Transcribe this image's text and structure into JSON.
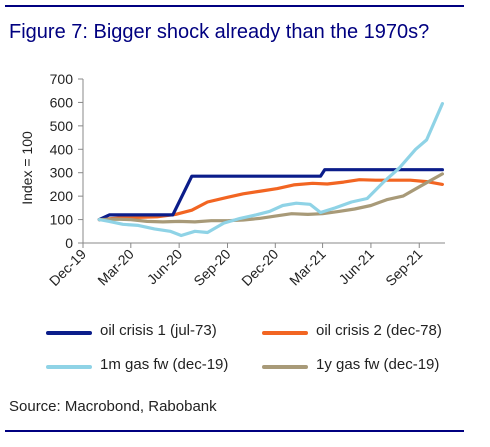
{
  "title": "Figure 7: Bigger shock already than the 1970s?",
  "source": "Source: Macrobond, Rabobank",
  "colors": {
    "brand": "#000080",
    "axis": "#888888"
  },
  "chart_data": {
    "type": "line",
    "title": "Figure 7: Bigger shock already than the 1970s?",
    "xlabel": "",
    "ylabel": "Index = 100",
    "ylim": [
      0,
      700
    ],
    "yticks": [
      0,
      100,
      200,
      300,
      400,
      500,
      600,
      700
    ],
    "xlim": [
      "2019-12-01",
      "2021-10-20"
    ],
    "xticks": [
      "Dec-19",
      "Mar-20",
      "Jun-20",
      "Sep-20",
      "Dec-20",
      "Mar-21",
      "Jun-21",
      "Sep-21"
    ],
    "xtick_dates": [
      "2019-12-01",
      "2020-03-01",
      "2020-06-01",
      "2020-09-01",
      "2020-12-01",
      "2021-03-01",
      "2021-06-01",
      "2021-09-01"
    ],
    "grid": false,
    "legend_position": "bottom",
    "series": [
      {
        "name": "oil crisis 1 (jul-73)",
        "color": "#0b1d8a",
        "x": [
          "2020-01-01",
          "2020-01-20",
          "2020-05-20",
          "2020-06-25",
          "2021-02-25",
          "2021-03-05",
          "2021-10-15"
        ],
        "y": [
          100,
          120,
          120,
          285,
          285,
          313,
          313
        ]
      },
      {
        "name": "oil crisis 2 (dec-78)",
        "color": "#f26522",
        "x": [
          "2020-01-01",
          "2020-02-15",
          "2020-04-20",
          "2020-05-25",
          "2020-06-25",
          "2020-07-25",
          "2020-09-01",
          "2020-10-01",
          "2020-11-05",
          "2020-12-05",
          "2021-01-05",
          "2021-02-10",
          "2021-03-10",
          "2021-04-10",
          "2021-05-10",
          "2021-06-10",
          "2021-07-15",
          "2021-08-15",
          "2021-09-15",
          "2021-10-15"
        ],
        "y": [
          100,
          108,
          112,
          122,
          140,
          175,
          195,
          210,
          222,
          232,
          248,
          255,
          252,
          260,
          270,
          268,
          268,
          268,
          262,
          250
        ]
      },
      {
        "name": "1m gas fw (dec-19)",
        "color": "#8fd3e6",
        "x": [
          "2020-01-01",
          "2020-01-20",
          "2020-02-15",
          "2020-03-15",
          "2020-04-15",
          "2020-05-15",
          "2020-06-05",
          "2020-07-01",
          "2020-07-25",
          "2020-08-25",
          "2020-09-25",
          "2020-10-25",
          "2020-11-20",
          "2020-12-15",
          "2021-01-10",
          "2021-02-05",
          "2021-02-25",
          "2021-03-25",
          "2021-04-25",
          "2021-05-25",
          "2021-06-25",
          "2021-07-25",
          "2021-08-25",
          "2021-09-15",
          "2021-10-15"
        ],
        "y": [
          100,
          92,
          80,
          75,
          60,
          50,
          32,
          50,
          45,
          85,
          105,
          120,
          135,
          160,
          170,
          165,
          130,
          150,
          175,
          190,
          260,
          320,
          400,
          440,
          595
        ]
      },
      {
        "name": "1y gas fw (dec-19)",
        "color": "#a89a78",
        "x": [
          "2020-01-01",
          "2020-02-01",
          "2020-03-01",
          "2020-04-01",
          "2020-05-01",
          "2020-06-01",
          "2020-07-01",
          "2020-08-01",
          "2020-09-01",
          "2020-10-01",
          "2020-11-01",
          "2020-12-01",
          "2021-01-01",
          "2021-02-01",
          "2021-03-01",
          "2021-04-01",
          "2021-05-01",
          "2021-06-01",
          "2021-07-01",
          "2021-08-01",
          "2021-09-01",
          "2021-10-15"
        ],
        "y": [
          100,
          102,
          100,
          92,
          90,
          92,
          90,
          95,
          95,
          98,
          105,
          115,
          125,
          122,
          125,
          135,
          145,
          160,
          185,
          200,
          240,
          295
        ]
      }
    ]
  }
}
